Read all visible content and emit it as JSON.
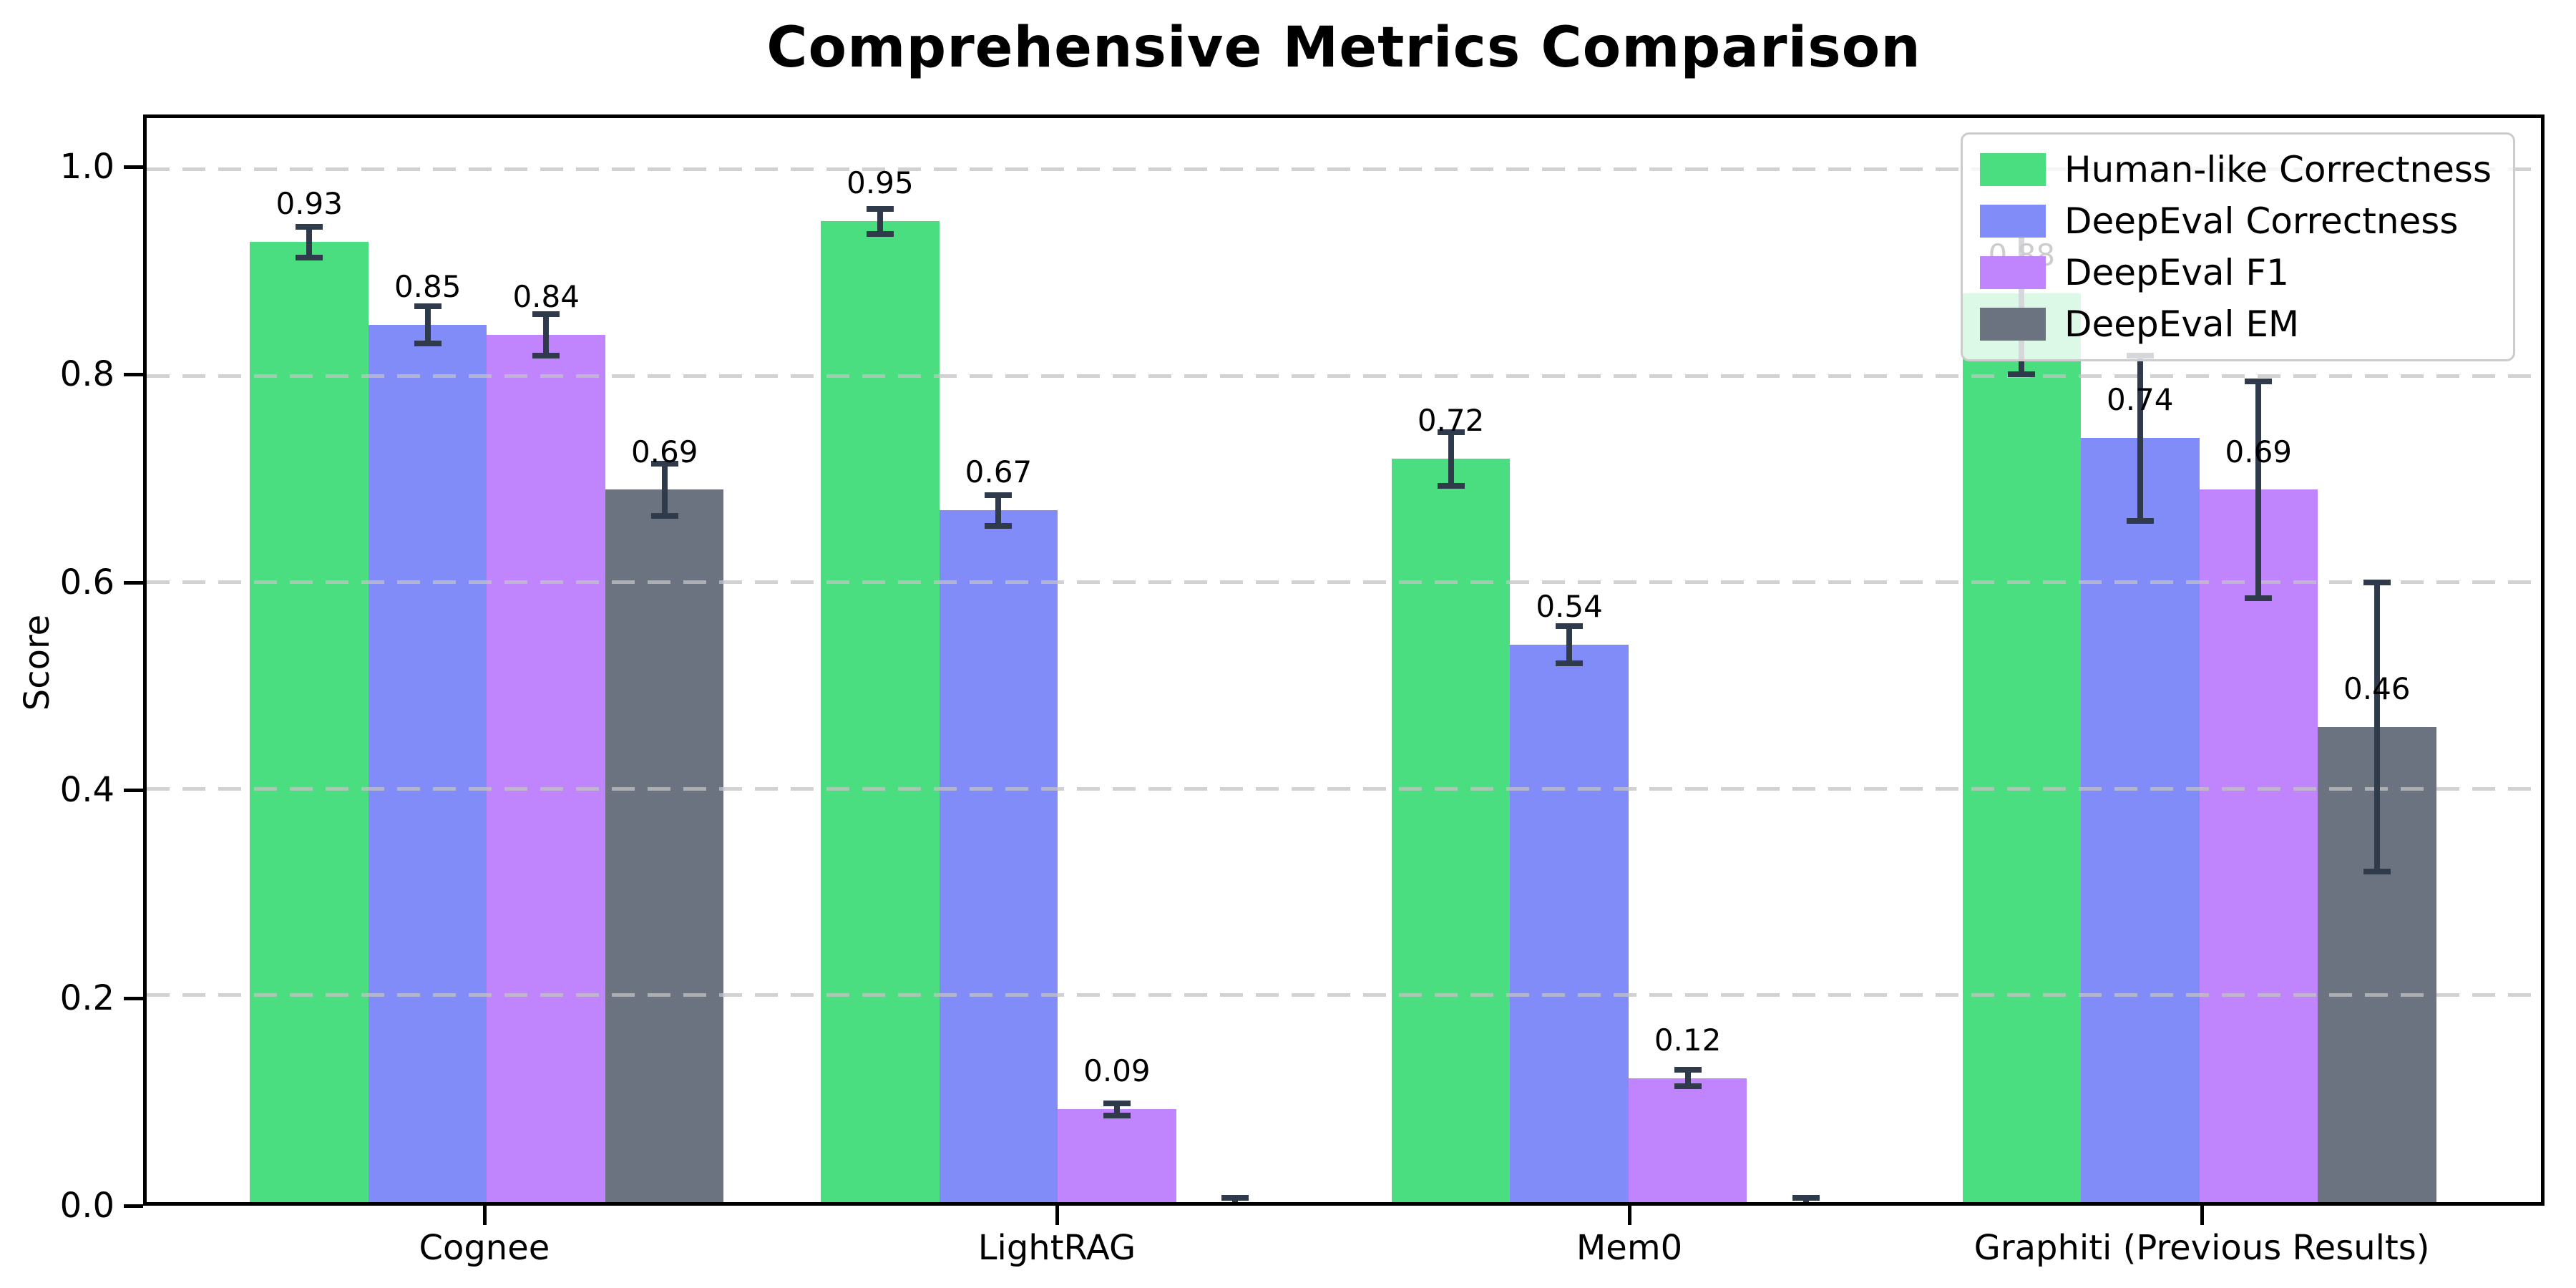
{
  "figure_title": "Comprehensive Metrics Comparison",
  "chart_data": {
    "type": "bar",
    "title": "Comprehensive Metrics Comparison",
    "xlabel": "",
    "ylabel": "Score",
    "ylim": [
      0,
      1.05
    ],
    "grid": "horizontal dashed",
    "legend_position": "upper right",
    "yticks": [
      {
        "label": "0.0",
        "value": 0.0
      },
      {
        "label": "0.2",
        "value": 0.2
      },
      {
        "label": "0.4",
        "value": 0.4
      },
      {
        "label": "0.6",
        "value": 0.6
      },
      {
        "label": "0.8",
        "value": 0.8
      },
      {
        "label": "1.0",
        "value": 1.0
      }
    ],
    "categories": [
      "Cognee",
      "LightRAG",
      "Mem0",
      "Graphiti (Previous Results)"
    ],
    "series": [
      {
        "name": "Human-like Correctness",
        "color": "#4ade80",
        "values": [
          0.93,
          0.95,
          0.72,
          0.88
        ],
        "errors": [
          0.015,
          0.012,
          0.026,
          0.078
        ],
        "value_labels": [
          "0.93",
          "0.95",
          "0.72",
          "0.88"
        ]
      },
      {
        "name": "DeepEval Correctness",
        "color": "#818cf8",
        "values": [
          0.85,
          0.67,
          0.54,
          0.74
        ],
        "errors": [
          0.018,
          0.015,
          0.018,
          0.08
        ],
        "value_labels": [
          "0.85",
          "0.67",
          "0.54",
          "0.74"
        ]
      },
      {
        "name": "DeepEval F1",
        "color": "#c084fc",
        "values": [
          0.84,
          0.09,
          0.12,
          0.69
        ],
        "errors": [
          0.02,
          0.006,
          0.008,
          0.105
        ],
        "value_labels": [
          "0.84",
          "0.09",
          "0.12",
          "0.69"
        ]
      },
      {
        "name": "DeepEval EM",
        "color": "#6b7280",
        "values": [
          0.69,
          0.0,
          0.0,
          0.46
        ],
        "errors": [
          0.025,
          0.004,
          0.004,
          0.14
        ],
        "value_labels": [
          "0.69",
          "",
          "",
          "0.46"
        ]
      }
    ],
    "error_bar_color": "#2f3a4a"
  }
}
